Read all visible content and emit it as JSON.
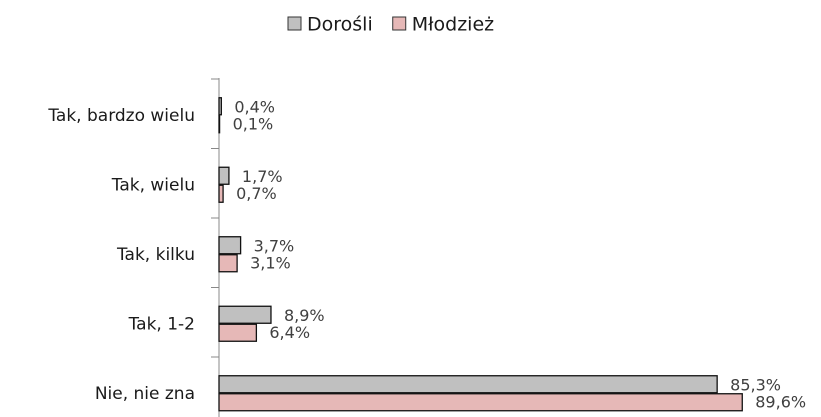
{
  "chart_data": {
    "type": "bar",
    "orientation": "horizontal",
    "categories": [
      "Tak, bardzo wielu",
      "Tak, wielu",
      "Tak, kilku",
      "Tak, 1-2",
      "Nie, nie zna"
    ],
    "series": [
      {
        "name": "Dorośli",
        "color": "#c0c0c0",
        "values": [
          0.4,
          1.7,
          3.7,
          8.9,
          85.3
        ],
        "value_labels": [
          "0,4%",
          "1,7%",
          "3,7%",
          "8,9%",
          "85,3%"
        ]
      },
      {
        "name": "Młodzież",
        "color": "#e6b8b7",
        "values": [
          0.1,
          0.7,
          3.1,
          6.4,
          89.6
        ],
        "value_labels": [
          "0,1%",
          "0,7%",
          "3,1%",
          "6,4%",
          "89,6%"
        ]
      }
    ],
    "legend": "top"
  }
}
